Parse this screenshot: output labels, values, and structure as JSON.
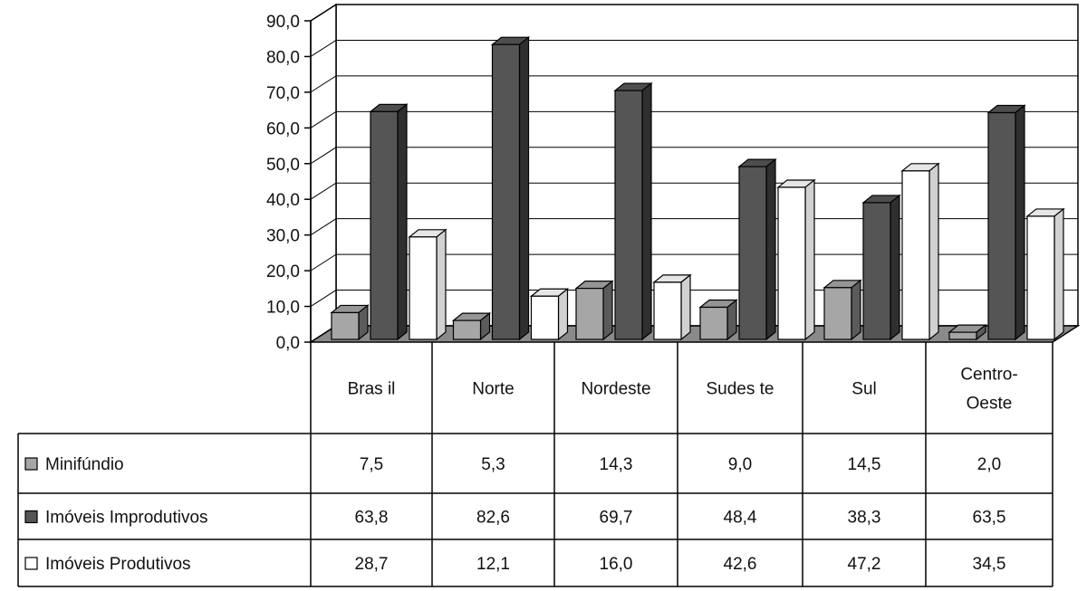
{
  "chart_data": {
    "type": "bar",
    "title": "",
    "xlabel": "",
    "ylabel": "",
    "ylim": [
      0,
      90
    ],
    "y_ticks": [
      "0,0",
      "10,0",
      "20,0",
      "30,0",
      "40,0",
      "50,0",
      "60,0",
      "70,0",
      "80,0",
      "90,0"
    ],
    "grid": true,
    "three_d": true,
    "legend": "table-below",
    "categories": [
      "Brasil",
      "Norte",
      "Nordeste",
      "Sudeste",
      "Sul",
      "Centro-Oeste"
    ],
    "category_labels": [
      [
        "Bras il"
      ],
      [
        "Norte"
      ],
      [
        "Nordeste"
      ],
      [
        "Sudes te"
      ],
      [
        "Sul"
      ],
      [
        "Centro-",
        "Oeste"
      ]
    ],
    "series": [
      {
        "name": "Minifúndio",
        "color": "#a6a6a6",
        "values": [
          7.5,
          5.3,
          14.3,
          9.0,
          14.5,
          2.0
        ],
        "value_labels": [
          "7,5",
          "5,3",
          "14,3",
          "9,0",
          "14,5",
          "2,0"
        ]
      },
      {
        "name": "Imóveis Improdutivos",
        "color": "#555555",
        "values": [
          63.8,
          82.6,
          69.7,
          48.4,
          38.3,
          63.5
        ],
        "value_labels": [
          "63,8",
          "82,6",
          "69,7",
          "48,4",
          "38,3",
          "63,5"
        ]
      },
      {
        "name": "Imóveis Produtivos",
        "color": "#ffffff",
        "values": [
          28.7,
          12.1,
          16.0,
          42.6,
          47.2,
          34.5
        ],
        "value_labels": [
          "28,7",
          "12,1",
          "16,0",
          "42,6",
          "47,2",
          "34,5"
        ]
      }
    ]
  }
}
